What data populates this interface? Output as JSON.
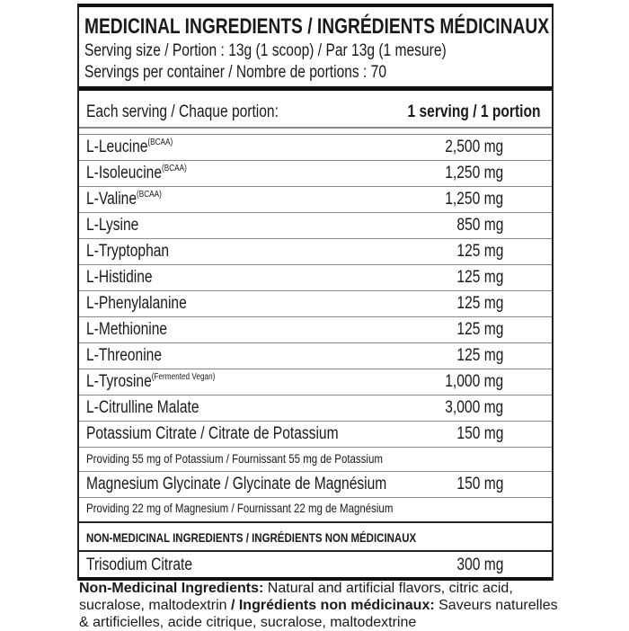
{
  "header": {
    "title": "MEDICINAL INGREDIENTS / INGRÉDIENTS MÉDICINAUX",
    "serving_size": "Serving size / Portion : 13g (1 scoop) / Par 13g (1 mesure)",
    "servings_per_container": "Servings per container / Nombre de portions : 70"
  },
  "columns": {
    "left": "Each serving / Chaque portion:",
    "right": "1 serving / 1 portion"
  },
  "ingredients": [
    {
      "name": "L-Leucine",
      "note": "(BCAA)",
      "amount": "2,500 mg"
    },
    {
      "name": "L-Isoleucine",
      "note": "(BCAA)",
      "amount": "1,250 mg"
    },
    {
      "name": "L-Valine",
      "note": "(BCAA)",
      "amount": "1,250 mg"
    },
    {
      "name": "L-Lysine",
      "amount": "850 mg"
    },
    {
      "name": "L-Tryptophan",
      "amount": "125 mg"
    },
    {
      "name": "L-Histidine",
      "amount": "125 mg"
    },
    {
      "name": "L-Phenylalanine",
      "amount": "125 mg"
    },
    {
      "name": "L-Methionine",
      "amount": "125 mg"
    },
    {
      "name": "L-Threonine",
      "amount": "125 mg"
    },
    {
      "name": "L-Tyrosine",
      "note": "(Fermented Vegan)",
      "amount": "1,000 mg"
    },
    {
      "name": "L-Citrulline Malate",
      "amount": "3,000 mg"
    },
    {
      "name": "Potassium Citrate / Citrate de Potassium",
      "amount": "150 mg"
    }
  ],
  "potassium_note": "Providing 55 mg of Potassium / Fournissant 55 mg de Potassium",
  "magnesium": {
    "name": "Magnesium Glycinate / Glycinate de Magnésium",
    "amount": "150 mg",
    "note": "Providing 22 mg of Magnesium / Fournissant 22 mg de Magnésium"
  },
  "non_medicinal": {
    "heading": "NON-MEDICINAL INGREDIENTS / INGRÉDIENTS NON MÉDICINAUX",
    "name": "Trisodium Citrate",
    "amount": "300 mg"
  },
  "footer": {
    "en_label": "Non-Medicinal Ingredients:",
    "en_text": " Natural and artificial flavors, citric acid, sucralose, maltodextrin ",
    "fr_label": "/ Ingrédients non médicinaux:",
    "fr_text": " Saveurs naturelles & artificielles, acide citrique, sucralose, maltodextrine"
  }
}
